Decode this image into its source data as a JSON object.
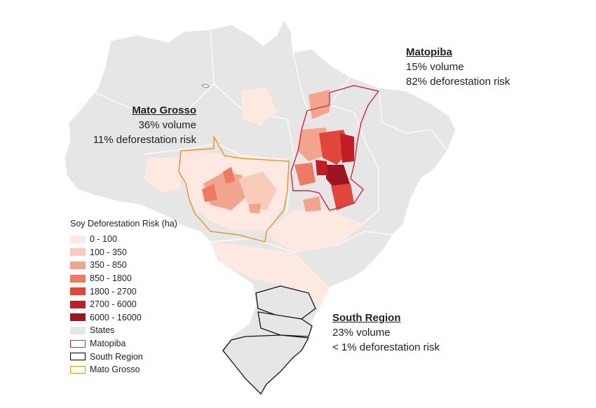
{
  "callouts": {
    "mato_grosso": {
      "title": "Mato Grosso",
      "volume": "36% volume",
      "risk": "11% deforestation risk"
    },
    "matopiba": {
      "title": "Matopiba",
      "volume": "15% volume",
      "risk": "82% deforestation risk"
    },
    "south": {
      "title": "South Region",
      "volume": "23% volume",
      "risk": "< 1% deforestation risk"
    }
  },
  "legend": {
    "title": "Soy Deforestation Risk (ha)",
    "items": [
      {
        "label": "0 - 100",
        "color": "#fde9e2"
      },
      {
        "label": "100 - 350",
        "color": "#f9cbbb"
      },
      {
        "label": "350 - 850",
        "color": "#f3a48c"
      },
      {
        "label": "850 - 1800",
        "color": "#ee7a63"
      },
      {
        "label": "1800 - 2700",
        "color": "#e2453a"
      },
      {
        "label": "2700 - 6000",
        "color": "#c41c24"
      },
      {
        "label": "6000 - 16000",
        "color": "#9e1521"
      },
      {
        "label": "States",
        "color": "#e6e6e6"
      },
      {
        "label": "Matopiba",
        "color": "#d8263a",
        "outline": true
      },
      {
        "label": "South Region",
        "color": "#000000",
        "outline": true
      },
      {
        "label": "Mato Grosso",
        "color": "#e8961e",
        "outline": true
      }
    ]
  },
  "colors": {
    "states": "#e6e6e6",
    "state_border": "#ffffff",
    "matopiba_outline": "#d8263a",
    "south_outline": "#111111",
    "mato_grosso_outline": "#e8961e"
  }
}
